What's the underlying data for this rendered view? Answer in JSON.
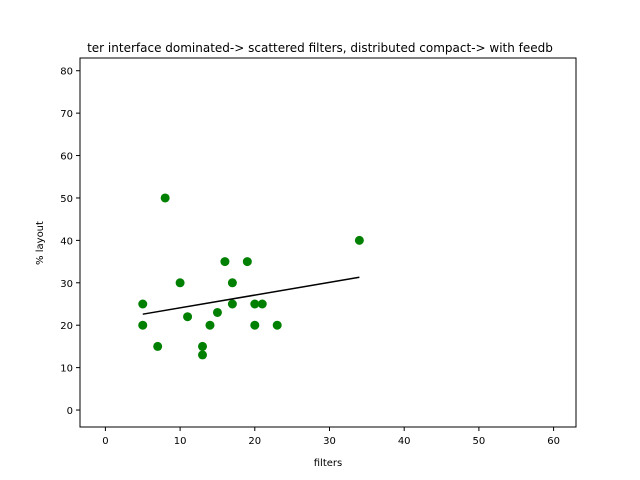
{
  "chart_data": {
    "type": "scatter",
    "title": "ter interface dominated-> scattered filters, distributed compact-> with feedb",
    "xlabel": "filters",
    "ylabel": "% layout",
    "xlim": [
      -3.4,
      63
    ],
    "ylim": [
      -4,
      83
    ],
    "xticks": [
      0,
      10,
      20,
      30,
      40,
      50,
      60
    ],
    "yticks": [
      0,
      10,
      20,
      30,
      40,
      50,
      60,
      70,
      80
    ],
    "grid": false,
    "points": [
      {
        "x": 5,
        "y": 25
      },
      {
        "x": 5,
        "y": 20
      },
      {
        "x": 7,
        "y": 15
      },
      {
        "x": 8,
        "y": 50
      },
      {
        "x": 10,
        "y": 30
      },
      {
        "x": 11,
        "y": 22
      },
      {
        "x": 13,
        "y": 15
      },
      {
        "x": 13,
        "y": 13
      },
      {
        "x": 14,
        "y": 20
      },
      {
        "x": 15,
        "y": 23
      },
      {
        "x": 16,
        "y": 35
      },
      {
        "x": 17,
        "y": 30
      },
      {
        "x": 17,
        "y": 25
      },
      {
        "x": 19,
        "y": 35
      },
      {
        "x": 20,
        "y": 25
      },
      {
        "x": 20,
        "y": 20
      },
      {
        "x": 21,
        "y": 25
      },
      {
        "x": 23,
        "y": 20
      },
      {
        "x": 34,
        "y": 40
      }
    ],
    "trendline": {
      "x": [
        5,
        34
      ],
      "y": [
        22.6,
        31.3
      ]
    },
    "colors": {
      "points": "#008000",
      "trendline": "#000000"
    }
  }
}
